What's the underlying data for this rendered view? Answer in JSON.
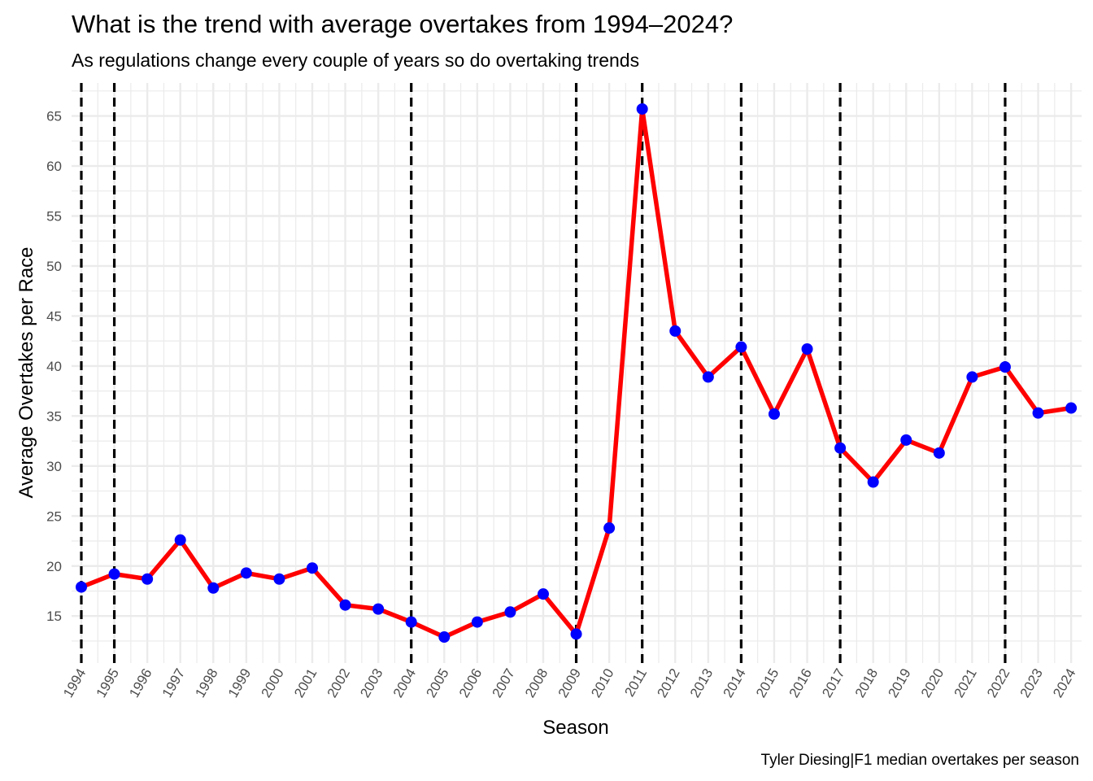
{
  "chart_data": {
    "type": "line",
    "title": "What is the trend with average overtakes from 1994–2024?",
    "subtitle": "As regulations change every couple of years so do overtaking trends",
    "xlabel": "Season",
    "ylabel": "Average Overtakes per Race",
    "caption": "Tyler Diesing|F1 median overtakes per season",
    "x": [
      1994,
      1995,
      1996,
      1997,
      1998,
      1999,
      2000,
      2001,
      2002,
      2003,
      2004,
      2005,
      2006,
      2007,
      2008,
      2009,
      2010,
      2011,
      2012,
      2013,
      2014,
      2015,
      2016,
      2017,
      2018,
      2019,
      2020,
      2021,
      2022,
      2023,
      2024
    ],
    "y": [
      17.9,
      19.2,
      18.7,
      22.6,
      17.8,
      19.3,
      18.7,
      19.8,
      16.1,
      15.7,
      14.4,
      12.9,
      14.4,
      15.4,
      17.2,
      13.2,
      23.8,
      65.7,
      43.5,
      38.9,
      41.9,
      35.2,
      41.7,
      31.8,
      28.4,
      32.6,
      31.3,
      38.9,
      39.9,
      35.3,
      35.8
    ],
    "ylim": [
      10.3,
      68.3
    ],
    "yticks": [
      15,
      20,
      25,
      30,
      35,
      40,
      45,
      50,
      55,
      60,
      65
    ],
    "regulation_changes": [
      1994,
      1995,
      2004,
      2009,
      2011,
      2014,
      2017,
      2022
    ],
    "grid": true,
    "legend": "none",
    "colors": {
      "line": "#ff0000",
      "points": "#0000ff",
      "vlines": "#000000",
      "grid": "#ebebeb"
    }
  }
}
